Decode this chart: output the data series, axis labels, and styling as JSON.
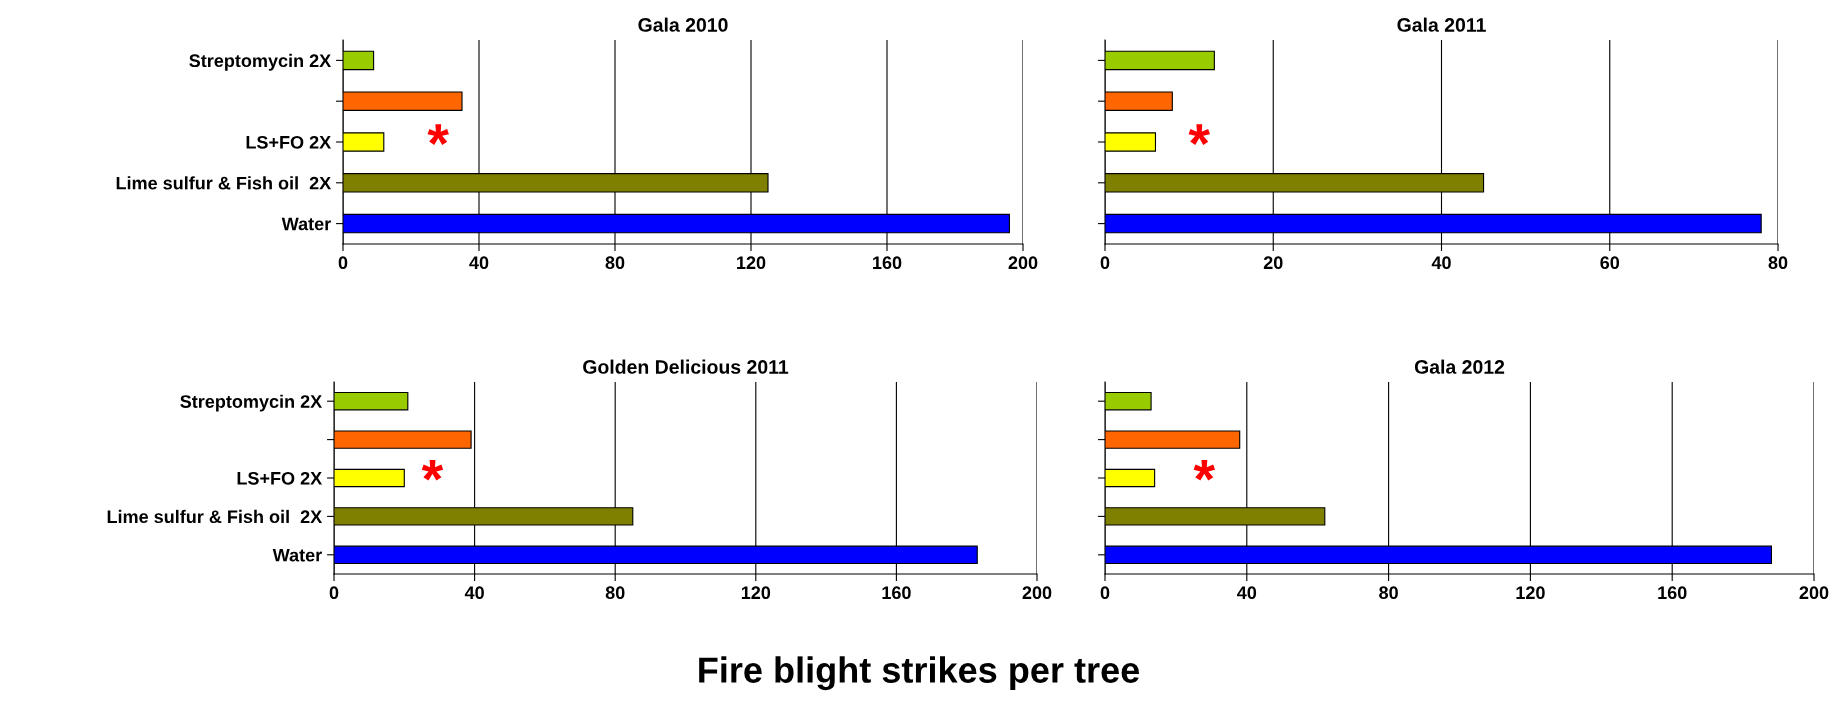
{
  "chart_data": [
    {
      "type": "bar",
      "orientation": "horizontal",
      "title": "Gala 2010",
      "categories": [
        "Streptomycin 2X",
        null,
        "LS+FO 2X",
        "Lime sulfur & Fish oil  2X",
        "Water"
      ],
      "values": [
        9,
        35,
        12,
        125,
        196
      ],
      "colors": [
        "#99cc00",
        "#ff6600",
        "#ffff00",
        "#808000",
        "#0000ff"
      ],
      "xlim": [
        0,
        200
      ],
      "xticks": [
        0,
        40,
        80,
        120,
        160,
        200
      ],
      "grid": "x",
      "annotations": [
        "*"
      ]
    },
    {
      "type": "bar",
      "orientation": "horizontal",
      "title": "Gala 2011",
      "categories": [
        null,
        null,
        null,
        null,
        null
      ],
      "values": [
        13,
        8,
        6,
        45,
        78
      ],
      "colors": [
        "#99cc00",
        "#ff6600",
        "#ffff00",
        "#808000",
        "#0000ff"
      ],
      "xlim": [
        0,
        80
      ],
      "xticks": [
        0,
        20,
        40,
        60,
        80
      ],
      "grid": "x",
      "tick_labels": "x",
      "annotations": [
        "*"
      ]
    },
    {
      "type": "bar",
      "orientation": "horizontal",
      "title": "Golden Delicious 2011",
      "xlabel": "Fire blight strikes per tree",
      "categories": [
        "Streptomycin 2X",
        null,
        "LS+FO 2X",
        "Lime sulfur & Fish oil  2X",
        "Water"
      ],
      "values": [
        21,
        39,
        20,
        85,
        183
      ],
      "colors": [
        "#99cc00",
        "#ff6600",
        "#ffff00",
        "#808000",
        "#0000ff"
      ],
      "xlim": [
        0,
        200
      ],
      "xticks": [
        0,
        40,
        80,
        120,
        160,
        200
      ],
      "grid": "x",
      "annotations": [
        "*"
      ]
    },
    {
      "type": "bar",
      "orientation": "horizontal",
      "title": "Gala 2012",
      "categories": [
        null,
        null,
        null,
        null,
        null
      ],
      "values": [
        13,
        38,
        14,
        62,
        188
      ],
      "colors": [
        "#99cc00",
        "#ff6600",
        "#ffff00",
        "#808000",
        "#0000ff"
      ],
      "xlim": [
        0,
        200
      ],
      "xticks": [
        0,
        40,
        80,
        120,
        160,
        200
      ],
      "grid": "x",
      "tick_labels": "x",
      "annotations": [
        "*"
      ]
    }
  ]
}
